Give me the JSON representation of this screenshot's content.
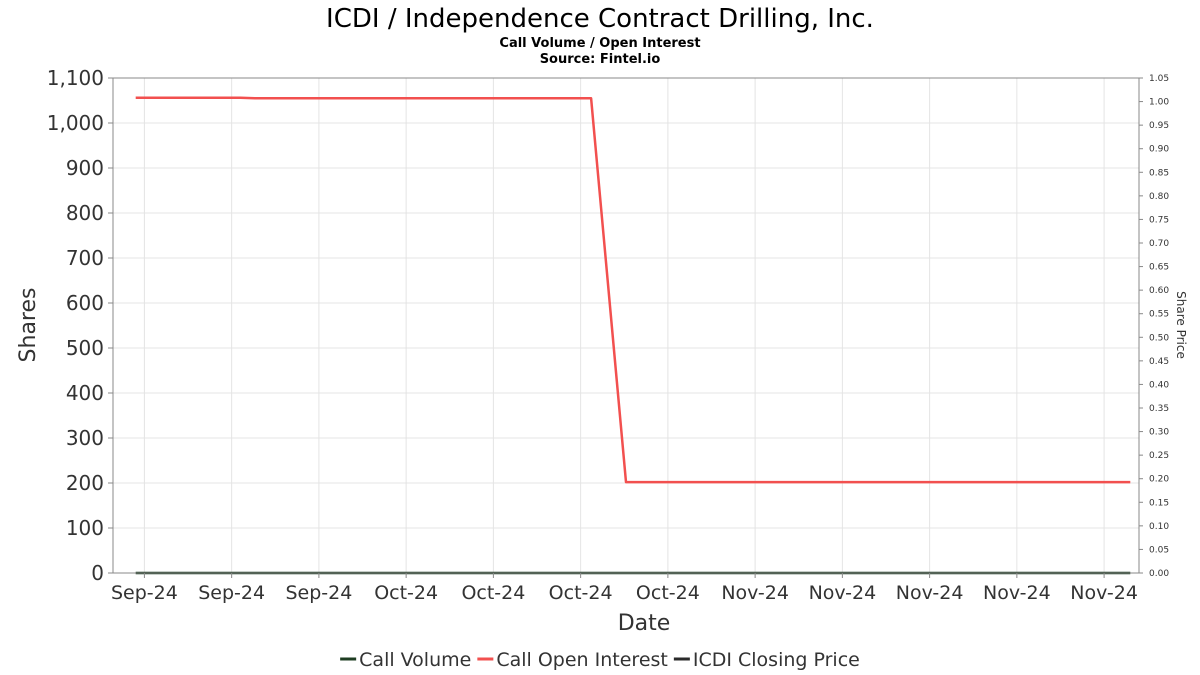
{
  "chart_data": {
    "type": "line",
    "title": "ICDI / Independence Contract Drilling, Inc.",
    "subtitle": "Call Volume / Open Interest",
    "source": "Source: Fintel.io",
    "xlabel": "Date",
    "ylabel": "Shares",
    "y2label": "Share Price",
    "ylim": [
      0,
      1100
    ],
    "y2lim": [
      0,
      1.05
    ],
    "yticks": [
      "0",
      "100",
      "200",
      "300",
      "400",
      "500",
      "600",
      "700",
      "800",
      "900",
      "1,000",
      "1,100"
    ],
    "y2ticks": [
      "0.00",
      "0.05",
      "0.10",
      "0.15",
      "0.20",
      "0.25",
      "0.30",
      "0.35",
      "0.40",
      "0.45",
      "0.50",
      "0.55",
      "0.60",
      "0.65",
      "0.70",
      "0.75",
      "0.80",
      "0.85",
      "0.90",
      "0.95",
      "1.00",
      "1.05"
    ],
    "xlim": [
      -0.3,
      58.5
    ],
    "x_ticks": [
      {
        "x": 1.5,
        "label": "Sep-24"
      },
      {
        "x": 6.5,
        "label": "Sep-24"
      },
      {
        "x": 11.5,
        "label": "Sep-24"
      },
      {
        "x": 16.5,
        "label": "Oct-24"
      },
      {
        "x": 21.5,
        "label": "Oct-24"
      },
      {
        "x": 26.5,
        "label": "Oct-24"
      },
      {
        "x": 31.5,
        "label": "Oct-24"
      },
      {
        "x": 36.5,
        "label": "Nov-24"
      },
      {
        "x": 41.5,
        "label": "Nov-24"
      },
      {
        "x": 46.5,
        "label": "Nov-24"
      },
      {
        "x": 51.5,
        "label": "Nov-24"
      },
      {
        "x": 56.5,
        "label": "Nov-24"
      }
    ],
    "grid": true,
    "legend": "bottom",
    "series": [
      {
        "name": "Call Volume",
        "color": "#1e3d22",
        "axis": "left",
        "points": [
          [
            1,
            0
          ],
          [
            58,
            0
          ]
        ]
      },
      {
        "name": "Call Open Interest",
        "color": "#f2504f",
        "axis": "left",
        "points": [
          [
            1,
            1056
          ],
          [
            7,
            1056
          ],
          [
            8,
            1055
          ],
          [
            27.1,
            1055
          ],
          [
            29.1,
            202
          ],
          [
            58,
            202
          ]
        ]
      },
      {
        "name": "ICDI Closing Price",
        "color": "#2a2a2a",
        "axis": "right",
        "points": []
      }
    ]
  }
}
